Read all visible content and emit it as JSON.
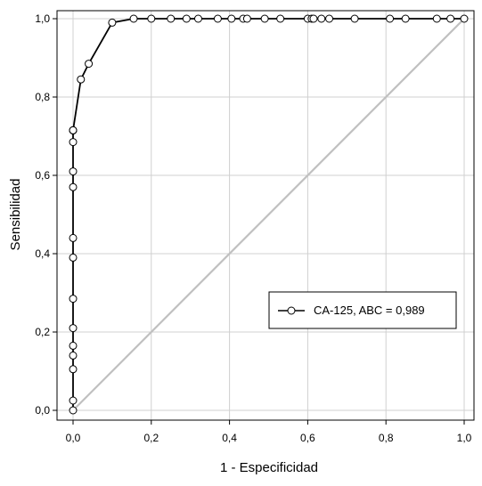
{
  "chart_data": {
    "type": "line",
    "xlabel": "1 - Especificidad",
    "ylabel": "Sensibilidad",
    "xlim": [
      0,
      1
    ],
    "ylim": [
      0,
      1
    ],
    "grid": true,
    "x_ticks": [
      0,
      0.2,
      0.4,
      0.6,
      0.8,
      1.0
    ],
    "y_ticks": [
      0,
      0.2,
      0.4,
      0.6,
      0.8,
      1.0
    ],
    "x_tick_labels": [
      "0,0",
      "0,2",
      "0,4",
      "0,6",
      "0,8",
      "1,0"
    ],
    "y_tick_labels": [
      "0,0",
      "0,2",
      "0,4",
      "0,6",
      "0,8",
      "1,0"
    ],
    "legend_position": "lower-right",
    "series": [
      {
        "name": "CA-125, ABC = 0,989",
        "color": "#000000",
        "marker": "open-circle",
        "x": [
          0,
          0,
          0,
          0,
          0,
          0,
          0,
          0,
          0,
          0,
          0,
          0,
          0,
          0,
          0,
          0,
          0.02,
          0.04,
          0.1,
          0.155,
          0.2,
          0.25,
          0.29,
          0.32,
          0.37,
          0.405,
          0.435,
          0.445,
          0.49,
          0.53,
          0.6,
          0.61,
          0.615,
          0.635,
          0.655,
          0.72,
          0.81,
          0.85,
          0.93,
          0.965,
          1.0
        ],
        "y": [
          0,
          0.025,
          0.105,
          0.14,
          0.165,
          0.21,
          0.285,
          0.39,
          0.44,
          0.57,
          0.61,
          0.685,
          0.715,
          0.715,
          0.715,
          0.715,
          0.845,
          0.885,
          0.99,
          1.0,
          1.0,
          1.0,
          1.0,
          1.0,
          1.0,
          1.0,
          1.0,
          1.0,
          1.0,
          1.0,
          1.0,
          1.0,
          1.0,
          1.0,
          1.0,
          1.0,
          1.0,
          1.0,
          1.0,
          1.0,
          1.0
        ]
      },
      {
        "name": "",
        "color": "#c0c0c0",
        "marker": "none",
        "x": [
          0,
          1
        ],
        "y": [
          0,
          1
        ]
      }
    ]
  }
}
